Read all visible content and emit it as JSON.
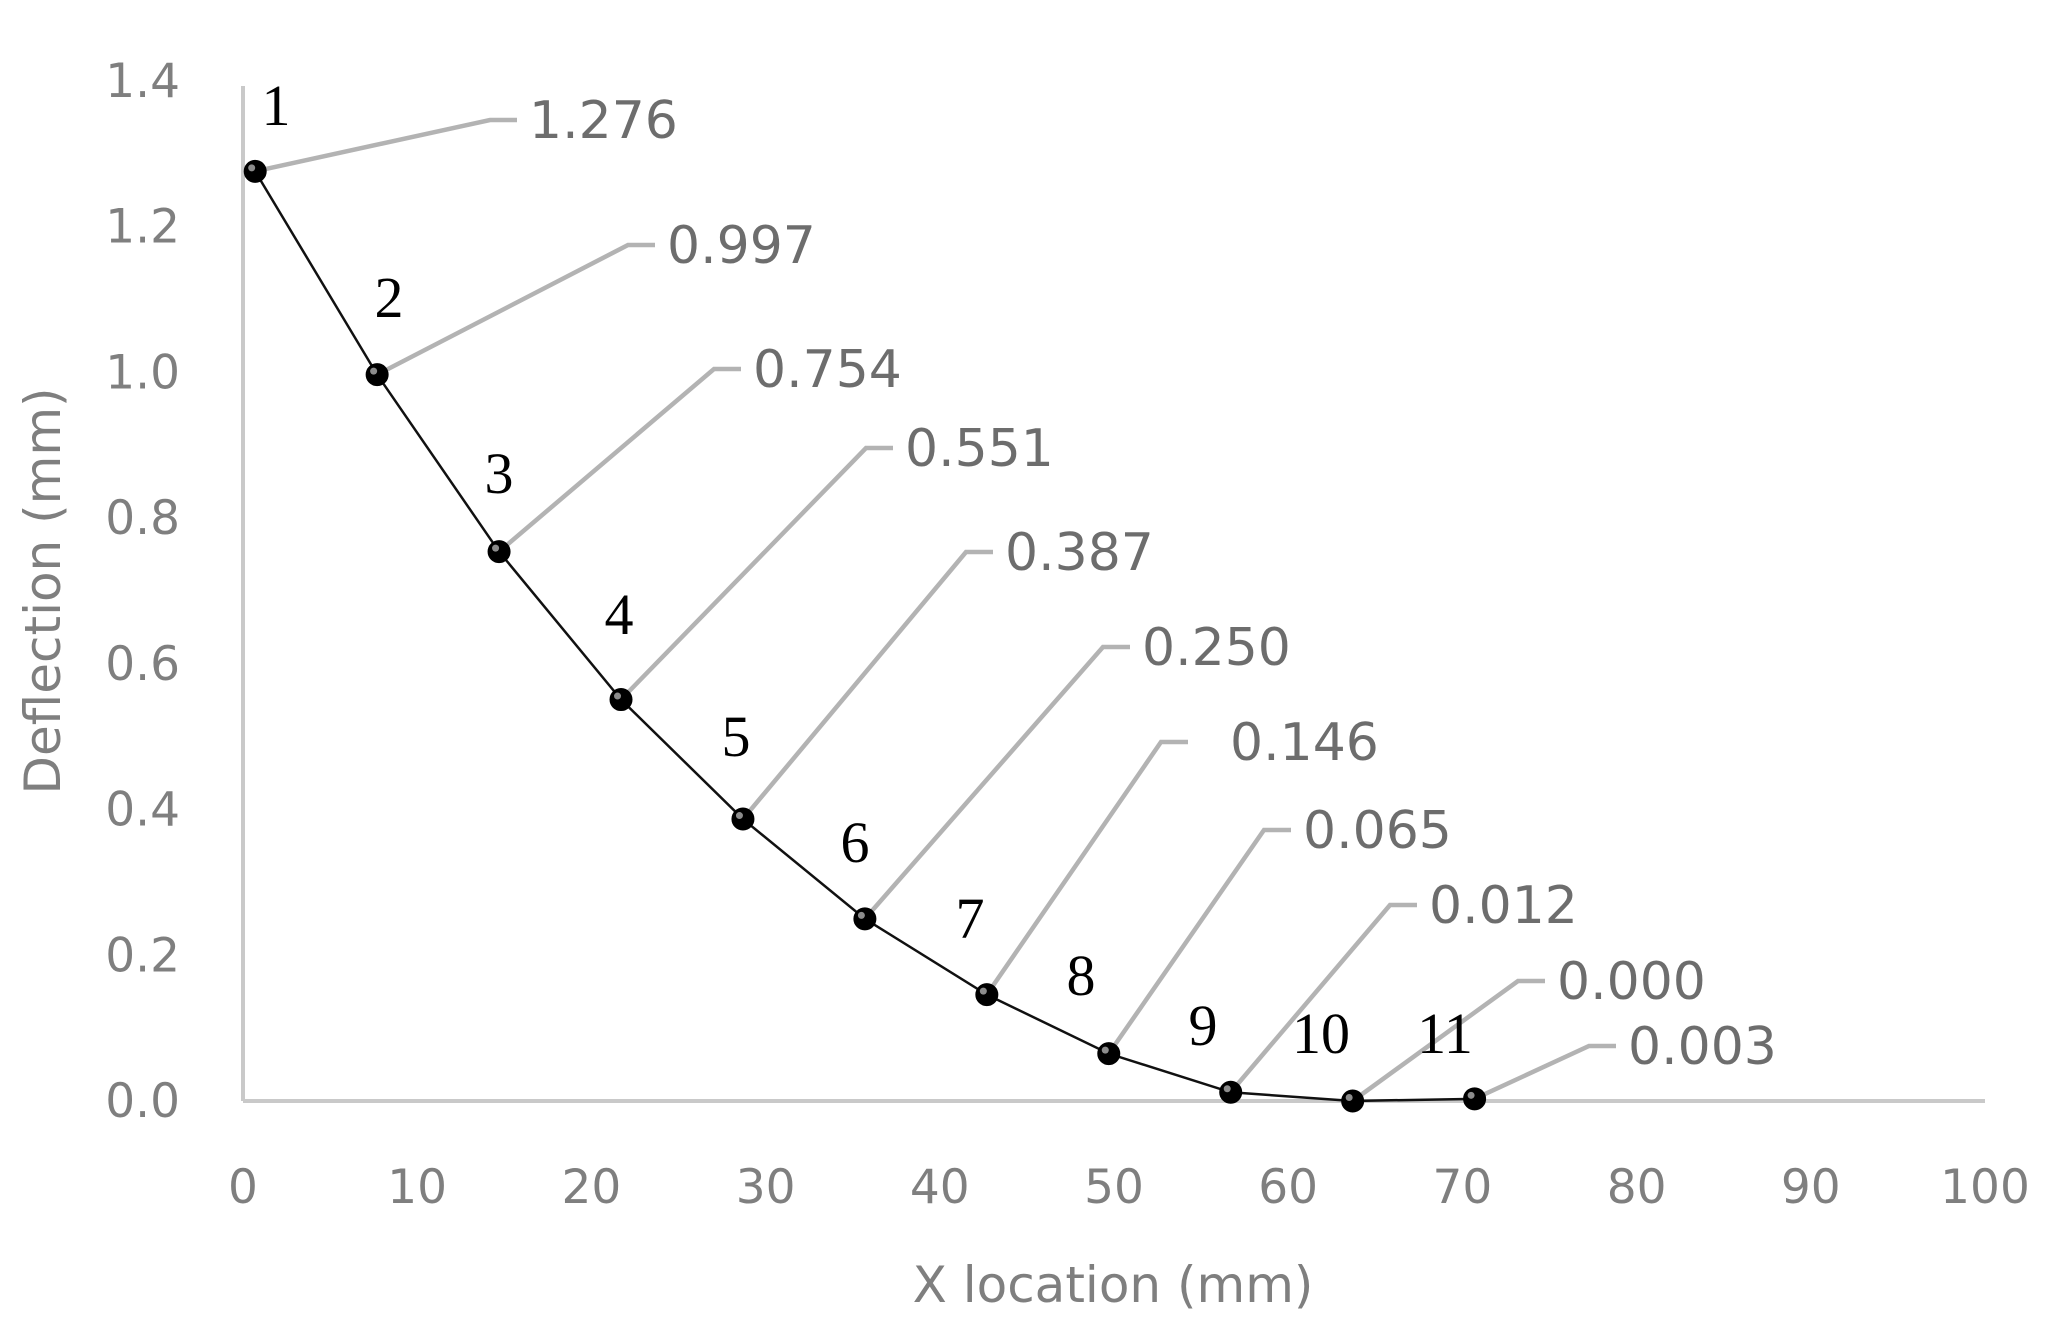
{
  "chart_data": {
    "type": "line",
    "title": "",
    "xlabel": "X location (mm)",
    "ylabel": "Deflection (mm)",
    "xlim": [
      0,
      100
    ],
    "ylim": [
      0,
      1.4
    ],
    "x_ticks": [
      0,
      10,
      20,
      30,
      40,
      50,
      60,
      70,
      80,
      90,
      100
    ],
    "x_tick_labels": [
      "0",
      "10",
      "20",
      "30",
      "40",
      "50",
      "60",
      "70",
      "80",
      "90",
      "100"
    ],
    "y_ticks": [
      0,
      0.2,
      0.4,
      0.6,
      0.8,
      1.0,
      1.2,
      1.4
    ],
    "y_tick_labels": [
      "0.0",
      "0.2",
      "0.4",
      "0.6",
      "0.8",
      "1.0",
      "1.2",
      "1.4"
    ],
    "grid": false,
    "legend": "none",
    "series": [
      {
        "color": "#111111",
        "marker": "circle",
        "x": [
          0.7,
          7.7,
          14.7,
          21.7,
          28.7,
          35.7,
          42.7,
          49.7,
          56.7,
          63.7,
          70.7
        ],
        "values": [
          1.276,
          0.997,
          0.754,
          0.551,
          0.387,
          0.25,
          0.146,
          0.065,
          0.012,
          0.0,
          0.003
        ],
        "point_labels": [
          "1",
          "2",
          "3",
          "4",
          "5",
          "6",
          "7",
          "8",
          "9",
          "10",
          "11"
        ],
        "data_labels": [
          "1.276",
          "0.997",
          "0.754",
          "0.551",
          "0.387",
          "0.250",
          "0.146",
          "0.065",
          "0.012",
          "0.000",
          "0.003"
        ]
      }
    ],
    "colors": {
      "axis": "#c9c9c9",
      "tick_text": "#7f7f7f",
      "leader_line": "#b3b3b3",
      "data_label_text": "#6d6d6d",
      "point_label_text": "#000000"
    }
  }
}
